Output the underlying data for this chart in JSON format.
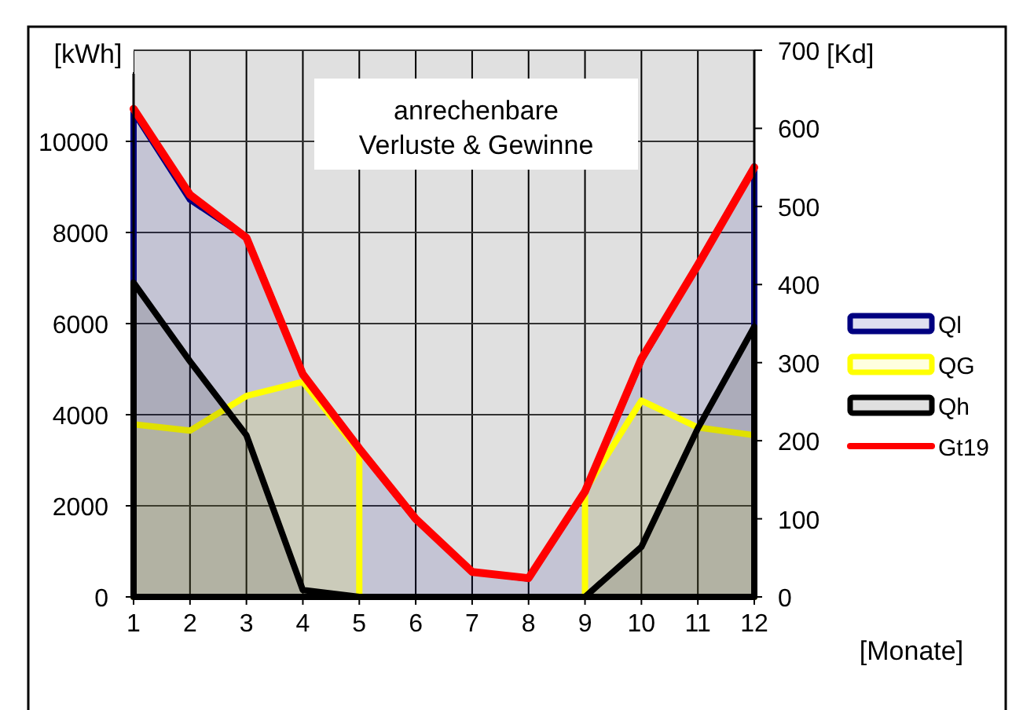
{
  "chart_data": {
    "type": "area",
    "title": "anrechenbare\nVerluste & Gewinne",
    "ylabel": "[kWh]",
    "y2label": "[Kd]",
    "xlabel": "[Monate]",
    "x": [
      1,
      2,
      3,
      4,
      5,
      6,
      7,
      8,
      9,
      10,
      11,
      12
    ],
    "xlim": [
      1,
      12
    ],
    "xticks": [
      1,
      2,
      3,
      4,
      5,
      6,
      7,
      8,
      9,
      10,
      11,
      12
    ],
    "ylim": [
      0,
      12000
    ],
    "yticks": [
      0,
      2000,
      4000,
      6000,
      8000,
      10000
    ],
    "y2lim": [
      0,
      700
    ],
    "y2ticks": [
      0,
      100,
      200,
      300,
      400,
      500,
      600,
      700
    ],
    "grid": true,
    "legend": "right",
    "series": [
      {
        "name": "Ql",
        "color": "#000080",
        "values": [
          10650,
          8720,
          7900,
          4900,
          3250,
          1700,
          550,
          400,
          2300,
          5200,
          7300,
          9450
        ]
      },
      {
        "name": "QG",
        "color": "#ffff00",
        "values": [
          3790,
          3650,
          4410,
          4720,
          3200,
          null,
          null,
          null,
          2340,
          4310,
          3720,
          3550
        ]
      },
      {
        "name": "Qh",
        "color": "#000000",
        "values": [
          6900,
          5170,
          3550,
          150,
          0,
          0,
          0,
          0,
          0,
          1100,
          3700,
          5930
        ]
      },
      {
        "name": "Gt19",
        "type": "line",
        "axis": "y2",
        "color": "#ff0000",
        "values": [
          625,
          515,
          460,
          285,
          190,
          100,
          32,
          24,
          135,
          305,
          425,
          550
        ]
      }
    ]
  }
}
